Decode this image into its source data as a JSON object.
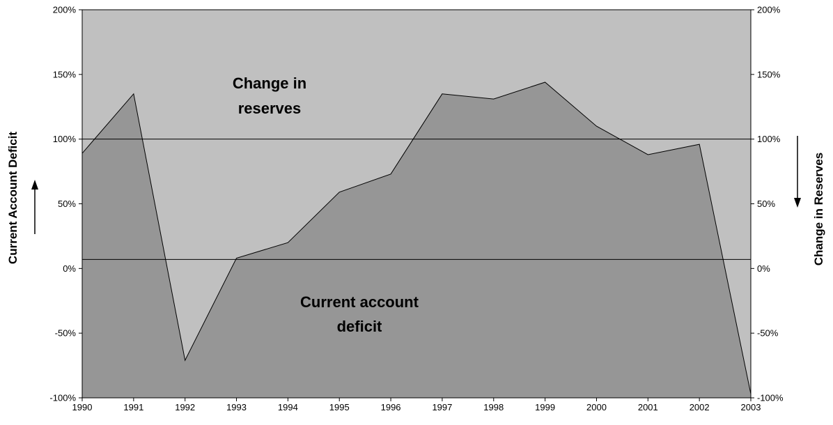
{
  "chart_data": {
    "type": "area",
    "title": "",
    "x": [
      1990,
      1991,
      1992,
      1993,
      1994,
      1995,
      1996,
      1997,
      1998,
      1999,
      2000,
      2001,
      2002,
      2003
    ],
    "x_tick_labels": [
      "1990",
      "1991",
      "1992",
      "1993",
      "1994",
      "1995",
      "1996",
      "1997",
      "1998",
      "1999",
      "2000",
      "2001",
      "2002",
      "2003"
    ],
    "series": [
      {
        "name": "",
        "values": [
          89,
          135,
          -71,
          8,
          20,
          59,
          73,
          135,
          131,
          144,
          110,
          88,
          96,
          -97
        ]
      }
    ],
    "ylim": [
      -100,
      200
    ],
    "y_left_ticks": [
      200,
      150,
      100,
      50,
      0,
      -50,
      -100
    ],
    "y_left_tick_labels": [
      "200%",
      "150%",
      "100%",
      "50%",
      "0%",
      "-50%",
      "-100%"
    ],
    "ylabel_left": "Current Account Deficit",
    "ylim_right": [
      200,
      -100
    ],
    "y_right_ticks": [
      -100,
      -50,
      0,
      50,
      100,
      150,
      200
    ],
    "y_right_tick_labels": [
      "-100%",
      "-50%",
      "0%",
      "50%",
      "100%",
      "150%",
      "200%"
    ],
    "ylabel_right": "Change in Reserves",
    "reference_lines": [
      100,
      7
    ],
    "annotations": {
      "upper_region": [
        "Change in",
        "reserves"
      ],
      "lower_region": [
        "Current account",
        "deficit"
      ]
    },
    "grid": false,
    "colors": {
      "upper_fill": "#c0c0c0",
      "lower_fill": "#969696",
      "line": "#000000"
    }
  }
}
